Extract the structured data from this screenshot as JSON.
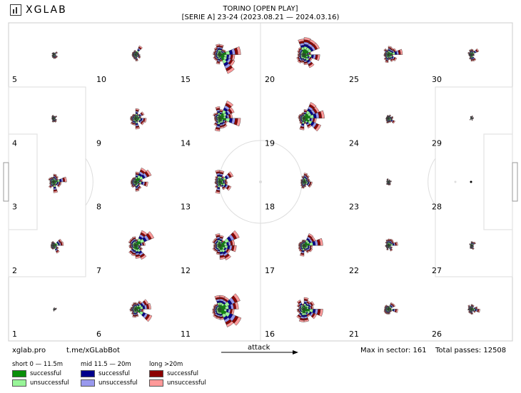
{
  "brand": {
    "logo_text": "XGLAB",
    "accent": "#c8102e"
  },
  "header": {
    "title": "TORINO [OPEN PLAY]",
    "subtitle": "[SERIE A] 23-24 (2023.08.21 — 2024.03.16)"
  },
  "footer": {
    "site": "xglab.pro",
    "telegram": "t.me/xGLabBot",
    "attack_label": "attack",
    "max_sector": "Max in sector: 161",
    "total_passes": "Total passes: 12508"
  },
  "legend": {
    "groups": [
      {
        "title": "short 0 — 11.5m",
        "items": [
          {
            "label": "successful",
            "color": "#0a8f0a"
          },
          {
            "label": "unsuccessful",
            "color": "#98f598"
          }
        ]
      },
      {
        "title": "mid 11.5 — 20m",
        "items": [
          {
            "label": "successful",
            "color": "#00008b"
          },
          {
            "label": "unsuccessful",
            "color": "#9999ee"
          }
        ]
      },
      {
        "title": "long >20m",
        "items": [
          {
            "label": "successful",
            "color": "#8b0000"
          },
          {
            "label": "unsuccessful",
            "color": "#ff9999"
          }
        ]
      }
    ]
  },
  "chart_data": {
    "type": "radial pass maps on pitch grid",
    "zones": [
      "1",
      "2",
      "3",
      "4",
      "5",
      "6",
      "7",
      "8",
      "9",
      "10",
      "11",
      "12",
      "13",
      "14",
      "15",
      "16",
      "17",
      "18",
      "19",
      "20",
      "21",
      "22",
      "23",
      "24",
      "25",
      "26",
      "27",
      "28",
      "29",
      "30"
    ],
    "colors": {
      "short_s": "#0a8f0a",
      "short_u": "#98f598",
      "mid_s": "#00008b",
      "mid_u": "#9999ee",
      "long_s": "#8b0000",
      "long_u": "#ff9999"
    },
    "zone_scale": [
      0.15,
      0.45,
      0.7,
      0.3,
      0.25,
      0.85,
      1.0,
      0.9,
      0.8,
      0.55,
      1.1,
      1.0,
      0.9,
      1.05,
      1.15,
      1.05,
      0.85,
      0.55,
      0.95,
      1.2,
      0.6,
      0.45,
      0.3,
      0.4,
      0.7,
      0.5,
      0.25,
      0.05,
      0.2,
      0.45
    ],
    "max_in_sector": 161,
    "total_passes": 12508
  }
}
